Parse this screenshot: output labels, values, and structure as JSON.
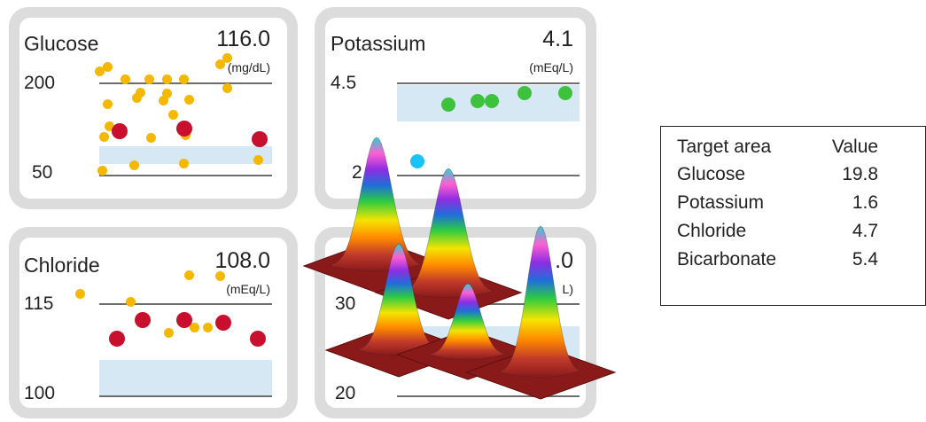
{
  "chart_data": [
    {
      "type": "scatter",
      "title": "Glucose",
      "current_value": "116.0",
      "unit": "(mg/dL)",
      "ticks": [
        "200",
        "50"
      ],
      "ylim": [
        50,
        200
      ],
      "target_range": [
        55,
        80
      ],
      "normal_points": [
        {
          "x": 0.0,
          "y": 218
        },
        {
          "x": 0.05,
          "y": 225
        },
        {
          "x": 0.05,
          "y": 165
        },
        {
          "x": 0.15,
          "y": 205
        },
        {
          "x": 0.29,
          "y": 205
        },
        {
          "x": 0.39,
          "y": 205
        },
        {
          "x": 0.49,
          "y": 205
        },
        {
          "x": 0.7,
          "y": 230
        },
        {
          "x": 0.74,
          "y": 190
        },
        {
          "x": 0.74,
          "y": 240
        },
        {
          "x": 0.39,
          "y": 182
        },
        {
          "x": 0.37,
          "y": 170
        },
        {
          "x": 0.24,
          "y": 184
        },
        {
          "x": 0.22,
          "y": 175
        },
        {
          "x": 0.52,
          "y": 172
        },
        {
          "x": 0.43,
          "y": 148
        },
        {
          "x": 0.06,
          "y": 128
        },
        {
          "x": 0.03,
          "y": 112
        },
        {
          "x": 0.3,
          "y": 110
        },
        {
          "x": 0.5,
          "y": 114
        },
        {
          "x": 0.02,
          "y": 56
        },
        {
          "x": 0.2,
          "y": 65
        },
        {
          "x": 0.49,
          "y": 68
        },
        {
          "x": 0.92,
          "y": 74
        }
      ],
      "alert_points": [
        {
          "x": 0.12,
          "y": 121
        },
        {
          "x": 0.49,
          "y": 125
        },
        {
          "x": 0.93,
          "y": 108
        }
      ]
    },
    {
      "type": "scatter",
      "title": "Potassium",
      "current_value": "4.1",
      "unit": "(mEq/L)",
      "ticks": [
        "4.5",
        "2"
      ],
      "ylim": [
        2,
        4.5
      ],
      "target_range": [
        3.5,
        4.5
      ],
      "normal_points": [
        {
          "x": 0.28,
          "y": 3.9
        },
        {
          "x": 0.44,
          "y": 4.0
        },
        {
          "x": 0.52,
          "y": 4.0
        },
        {
          "x": 0.7,
          "y": 4.2
        },
        {
          "x": 0.92,
          "y": 4.2
        }
      ],
      "low_points": [
        {
          "x": 0.11,
          "y": 2.35
        }
      ]
    },
    {
      "type": "scatter",
      "title": "Chloride",
      "current_value": "108.0",
      "unit": "(mEq/L)",
      "ticks": [
        "115",
        "100"
      ],
      "ylim": [
        100,
        115
      ],
      "target_range": [
        100,
        106
      ],
      "normal_points": [
        {
          "x": -0.11,
          "y": 116.5
        },
        {
          "x": 0.18,
          "y": 115.2
        },
        {
          "x": 0.52,
          "y": 119.5
        },
        {
          "x": 0.7,
          "y": 119.4
        },
        {
          "x": 0.4,
          "y": 110.2
        },
        {
          "x": 0.55,
          "y": 111.1
        },
        {
          "x": 0.63,
          "y": 111.0
        }
      ],
      "alert_points": [
        {
          "x": 0.1,
          "y": 109.2
        },
        {
          "x": 0.25,
          "y": 112.2
        },
        {
          "x": 0.49,
          "y": 112.3
        },
        {
          "x": 0.72,
          "y": 111.8
        },
        {
          "x": 0.92,
          "y": 109.2
        }
      ]
    },
    {
      "type": "scatter",
      "title": "",
      "current_value": "2 .0",
      "unit": "L)",
      "ticks": [
        "30",
        "20"
      ],
      "ylim": [
        20,
        30
      ],
      "target_range": [
        24,
        29
      ],
      "normal_points": [],
      "alert_points": []
    }
  ],
  "legend": {
    "headers": [
      "Target area",
      "Value"
    ],
    "rows": [
      {
        "name": "Glucose",
        "value": "19.8"
      },
      {
        "name": "Potassium",
        "value": "1.6"
      },
      {
        "name": "Chloride",
        "value": "4.7"
      },
      {
        "name": "Bicarbonate",
        "value": "5.4"
      }
    ]
  },
  "colors": {
    "panel_bg": "#dcdcdc",
    "target_fill": "#d6e8f4",
    "normal_dot": "#f5b800",
    "alert_dot": "#c8102e",
    "potassium_dot": "#3ec23e",
    "low_dot": "#19c3f5",
    "mound_base": "#8a1a1a"
  },
  "overlay": {
    "name": "gaussian-mounds",
    "count": 5
  }
}
